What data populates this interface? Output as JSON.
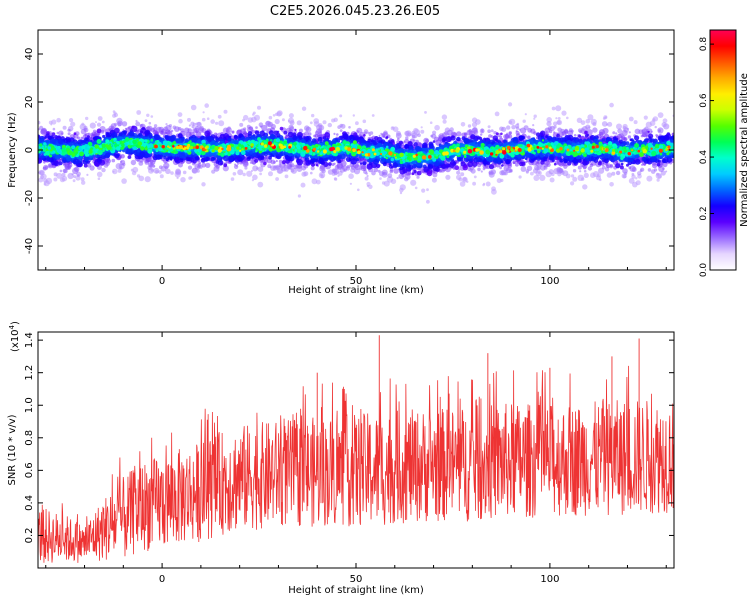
{
  "title": "C2E5.2026.045.23.26.E05",
  "chart_data": [
    {
      "type": "heatmap",
      "xlabel": "Height of straight line (km)",
      "ylabel": "Frequency (Hz)",
      "xlim": [
        -32,
        132
      ],
      "ylim": [
        -50,
        50
      ],
      "xticks": [
        0,
        50,
        100
      ],
      "yticks": [
        -40,
        -20,
        0,
        20,
        40
      ],
      "colorbar": {
        "label": "Normalized spectral amplitude",
        "range": [
          0,
          0.85
        ],
        "ticks": [
          0.0,
          0.2,
          0.4,
          0.6,
          0.8
        ],
        "tick_labels": [
          "0.0",
          "0.2",
          "0.4",
          "0.6",
          "0.8"
        ],
        "colors": [
          "#ffffff",
          "#e6d6ff",
          "#9a6cff",
          "#5a00ff",
          "#1400ff",
          "#0066ff",
          "#00ccff",
          "#00ffcc",
          "#00ff55",
          "#55ff00",
          "#ccff00",
          "#ffee00",
          "#ffaa00",
          "#ff5500",
          "#ff0000",
          "#ff0055"
        ]
      },
      "band": {
        "center_hz": [
          1,
          0,
          -1,
          0,
          2,
          3,
          2,
          1,
          1,
          1,
          0,
          1,
          2,
          2,
          1,
          0,
          0,
          1,
          -1,
          -1,
          -3,
          -3,
          -2,
          0,
          0,
          -1,
          0,
          1,
          1,
          0,
          0,
          1,
          -1,
          0,
          0,
          1
        ],
        "center_x_start": -32,
        "center_x_step": 4.7,
        "half_width_hz": 12,
        "core_half_width_hz": 3
      },
      "grid": false
    },
    {
      "type": "line",
      "xlabel": "Height of straight line (km)",
      "ylabel": "SNR (10 * v/v)",
      "y_multiplier_label": "(x10",
      "y_multiplier_exp": "4",
      "xlim": [
        -32,
        132
      ],
      "ylim": [
        0,
        14500
      ],
      "xticks": [
        0,
        50,
        100
      ],
      "yticks": [
        2000,
        4000,
        6000,
        8000,
        10000,
        12000,
        14000
      ],
      "ytick_labels": [
        "0.2",
        "0.4",
        "0.6",
        "0.8",
        "1.0",
        "1.2",
        "1.4"
      ],
      "color": "#ee3333",
      "envelope": {
        "x": [
          -32,
          -25,
          -20,
          -15,
          -10,
          -5,
          0,
          5,
          10,
          15,
          20,
          30,
          40,
          50,
          55,
          60,
          70,
          80,
          90,
          100,
          110,
          120,
          132
        ],
        "mean": [
          2000,
          1800,
          1500,
          2400,
          3000,
          3800,
          4000,
          4400,
          4700,
          5200,
          5500,
          5800,
          5900,
          6000,
          6000,
          6200,
          6300,
          6400,
          6600,
          6600,
          6700,
          6800,
          6900
        ],
        "spread": [
          1800,
          1500,
          1200,
          2000,
          2600,
          2800,
          2900,
          3000,
          3100,
          3200,
          3300,
          3300,
          3400,
          3500,
          3600,
          3500,
          3500,
          3600,
          3600,
          3500,
          3500,
          3600,
          3500
        ]
      },
      "peaks": [
        {
          "x": 56,
          "y": 14300
        },
        {
          "x": 123,
          "y": 14100
        },
        {
          "x": 84,
          "y": 13200
        },
        {
          "x": 116,
          "y": 13000
        },
        {
          "x": 100,
          "y": 12300
        },
        {
          "x": 40,
          "y": 12000
        }
      ],
      "grid": false
    }
  ]
}
